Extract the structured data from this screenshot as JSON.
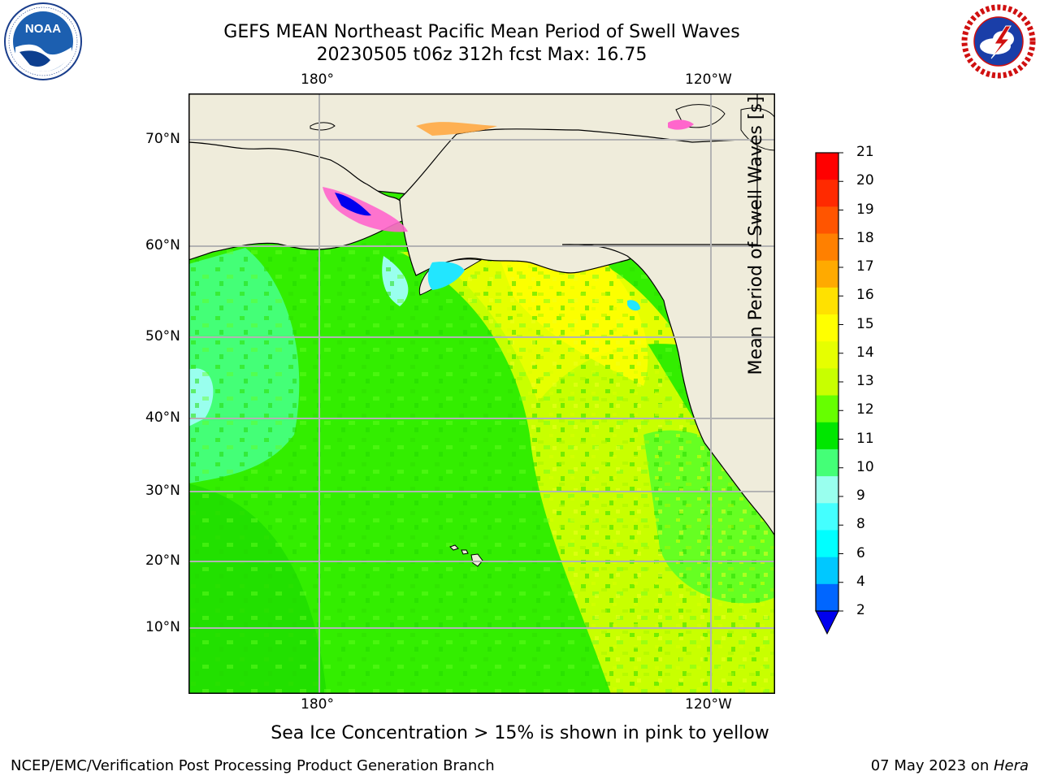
{
  "header": {
    "title_line1": "GEFS MEAN Northeast Pacific Mean Period of Swell Waves",
    "title_line2": "20230505 t06z 312h fcst   Max: 16.75"
  },
  "logos": {
    "left": "NOAA",
    "right": "NATIONAL WEATHER SERVICE"
  },
  "map": {
    "lon_labels_top": [
      "180°",
      "120°W"
    ],
    "lon_labels_bottom": [
      "180°",
      "120°W"
    ],
    "lat_labels": [
      "70°N",
      "60°N",
      "50°N",
      "40°N",
      "30°N",
      "20°N",
      "10°N"
    ],
    "land_color": "#efecdb",
    "ocean_base_color": "#33ee00"
  },
  "colorbar": {
    "label": "Mean Period of Swell Waves [s]",
    "ticks": [
      "21",
      "20",
      "19",
      "18",
      "17",
      "16",
      "15",
      "14",
      "13",
      "12",
      "11",
      "10",
      "9",
      "8",
      "6",
      "4",
      "2"
    ],
    "colors": [
      "#ff0000",
      "#ff2a00",
      "#ff5500",
      "#ff8000",
      "#ffaa00",
      "#ffe100",
      "#ffff00",
      "#e6ff00",
      "#c8ff00",
      "#66ff00",
      "#00e600",
      "#44ff77",
      "#99ffee",
      "#44ffff",
      "#00ffff",
      "#00c8ff",
      "#0066ff"
    ],
    "extend_color": "#0000ee"
  },
  "caption": "Sea Ice Concentration > 15% is shown in pink to yellow",
  "footer": {
    "left": "NCEP/EMC/Verification Post Processing Product Generation Branch",
    "right_date": "07 May 2023 on ",
    "right_host": "Hera"
  }
}
